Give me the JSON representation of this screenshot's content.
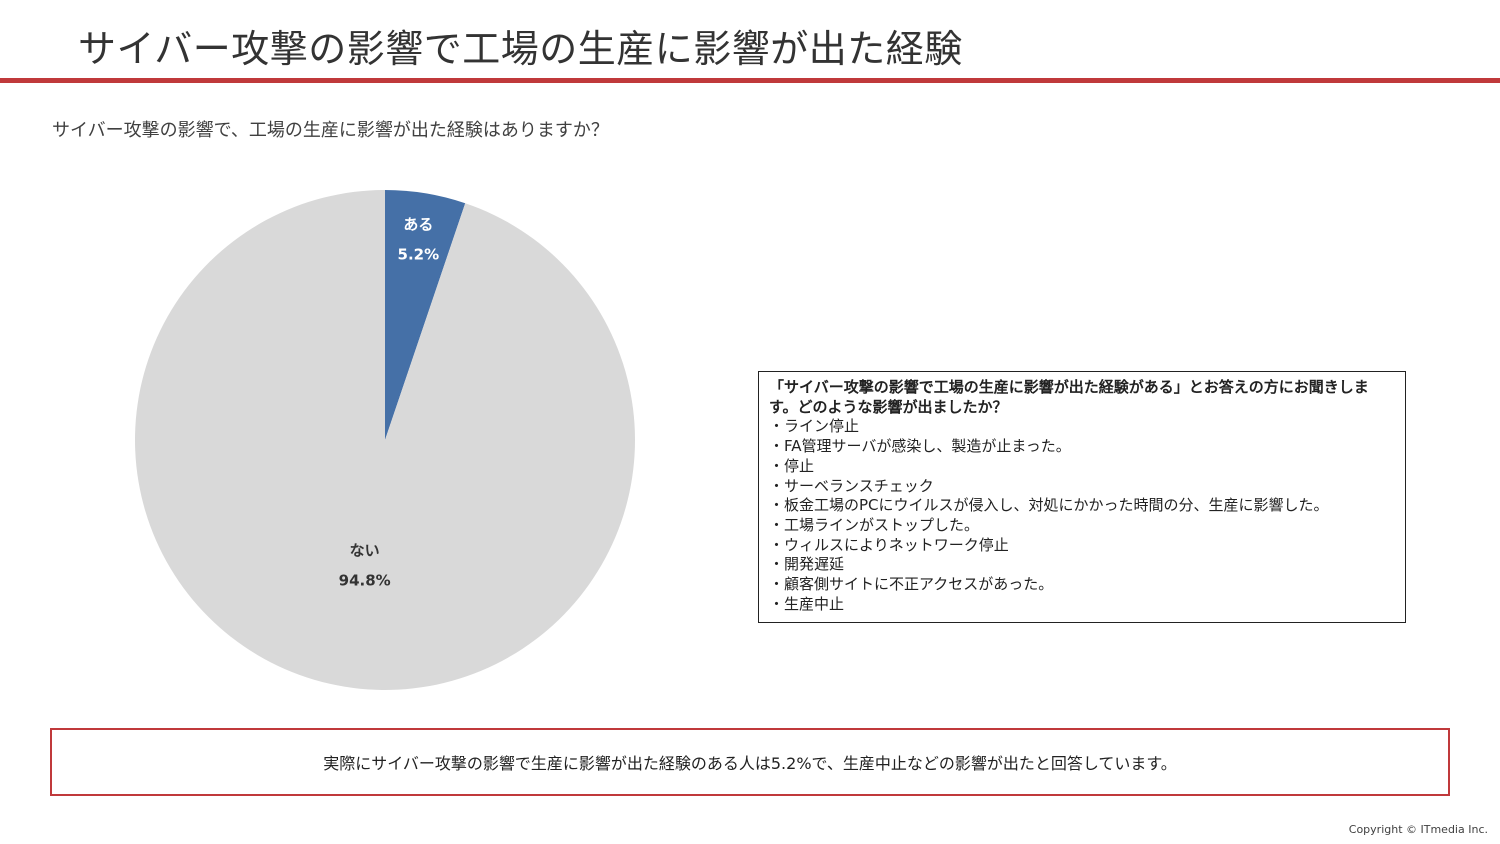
{
  "page": {
    "title": "サイバー攻撃の影響で工場の生産に影響が出た経験",
    "question": "サイバー攻撃の影響で、工場の生産に影響が出た経験はありますか？",
    "summary": "実際にサイバー攻撃の影響で生産に影響が出た経験のある人は5.2%で、生産中止などの影響が出たと回答しています。",
    "copyright": "Copyright © ITmedia Inc.",
    "accent_color": "#c0393b"
  },
  "answers_box": {
    "heading": "「サイバー攻撃の影響で工場の生産に影響が出た経験がある」とお答えの方にお聞きします。どのような影響が出ましたか？",
    "items": [
      "・ライン停止",
      "・FA管理サーバが感染し、製造が止まった。",
      "・停止",
      "・サーベランスチェック",
      "・板金工場のPCにウイルスが侵入し、対処にかかった時間の分、生産に影響した。",
      "・工場ラインがストップした。",
      "・ウィルスによりネットワーク停止",
      "・開発遅延",
      "・顧客側サイトに不正アクセスがあった。",
      "・生産中止"
    ]
  },
  "chart_data": {
    "type": "pie",
    "categories": [
      "ある",
      "ない"
    ],
    "values": [
      5.2,
      94.8
    ],
    "value_labels": [
      "5.2%",
      "94.8%"
    ],
    "colors": [
      "#4570a7",
      "#d9d9d9"
    ],
    "label_colors": [
      "#ffffff",
      "#333333"
    ],
    "start_angle_deg": 0,
    "direction": "clockwise"
  }
}
